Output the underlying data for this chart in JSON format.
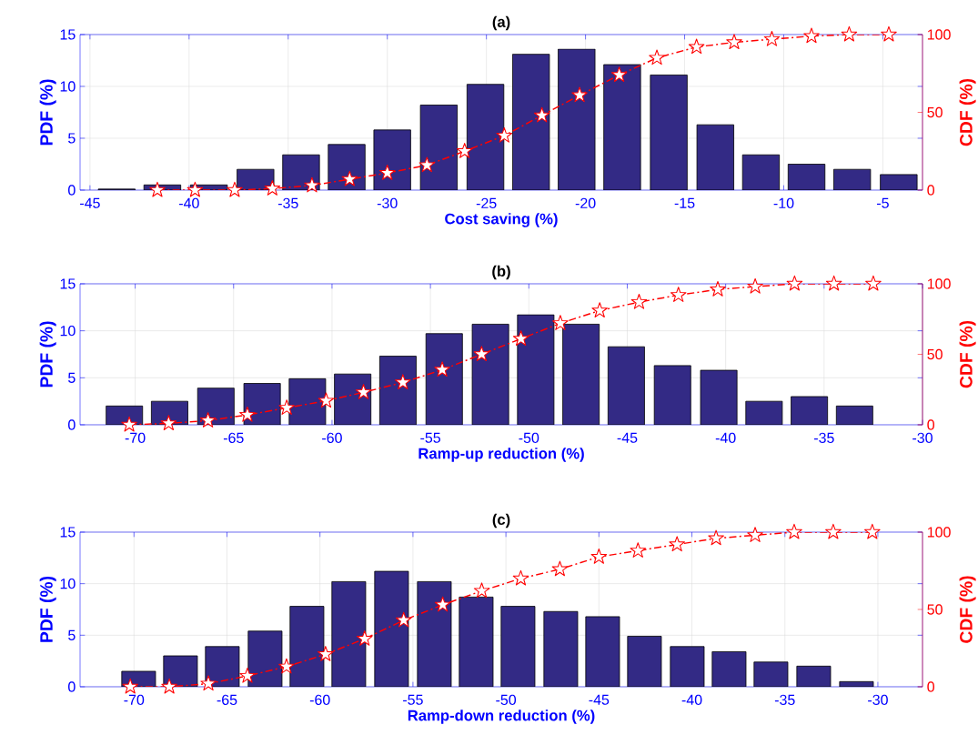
{
  "chart_data": [
    {
      "type": "histogram",
      "title": "(a)",
      "xlabel": "Cost saving (%)",
      "ylabel": "PDF (%)",
      "y2label": "CDF (%)",
      "xlim": [
        -45.5,
        -3
      ],
      "xticks": [
        -45,
        -40,
        -35,
        -30,
        -25,
        -20,
        -15,
        -10,
        -5
      ],
      "ylim": [
        0,
        15
      ],
      "yticks": [
        0,
        5,
        10,
        15
      ],
      "y2lim": [
        0,
        100
      ],
      "y2ticks": [
        0,
        50,
        100
      ],
      "grid": true,
      "series": [
        {
          "color": "#332a85",
          "bins": [
            -44.8,
            -42.5,
            -40.2,
            -37.8,
            -35.5,
            -33.2,
            -30.9,
            -28.6,
            -26.2,
            -23.9,
            -21.6,
            -19.3,
            -17.0,
            -14.6,
            -12.3,
            -10.0,
            -7.7,
            -5.4,
            -3.0
          ],
          "values": [
            0.1,
            0.5,
            0.5,
            2.0,
            3.4,
            4.4,
            5.8,
            8.2,
            10.2,
            13.1,
            13.6,
            12.1,
            11.1,
            6.3,
            3.4,
            2.5,
            2.0,
            1.5
          ]
        },
        {
          "type": "line",
          "axis": "y2",
          "color": "#ff0000",
          "marker": "star",
          "line_style": "dashdot",
          "x": [
            -41.6,
            -39.7,
            -37.7,
            -35.8,
            -33.8,
            -31.9,
            -30.0,
            -28.0,
            -26.1,
            -24.1,
            -22.2,
            -20.3,
            -18.3,
            -16.4,
            -14.4,
            -12.5,
            -10.6,
            -8.6,
            -6.7,
            -4.7
          ],
          "values": [
            0,
            0,
            0,
            1,
            3,
            7,
            11,
            16,
            25,
            35,
            48,
            61,
            74,
            85,
            92,
            95,
            97,
            99,
            100,
            100
          ]
        }
      ]
    },
    {
      "type": "histogram",
      "title": "(b)",
      "xlabel": "Ramp-up reduction (%)",
      "ylabel": "PDF (%)",
      "y2label": "CDF (%)",
      "xlim": [
        -72.8,
        -30
      ],
      "xticks": [
        -70,
        -65,
        -60,
        -55,
        -50,
        -45,
        -40,
        -35,
        -30
      ],
      "ylim": [
        0,
        15
      ],
      "yticks": [
        0,
        5,
        10,
        15
      ],
      "y2lim": [
        0,
        100
      ],
      "y2ticks": [
        0,
        50,
        100
      ],
      "grid": true,
      "series": [
        {
          "color": "#332a85",
          "bins": [
            -71.7,
            -69.4,
            -67.1,
            -64.7,
            -62.4,
            -60.1,
            -57.8,
            -55.5,
            -53.1,
            -50.8,
            -48.5,
            -46.2,
            -43.9,
            -41.5,
            -39.2,
            -36.9,
            -34.6,
            -32.3
          ],
          "values": [
            2.0,
            2.5,
            3.9,
            4.4,
            4.9,
            5.4,
            7.3,
            9.7,
            10.7,
            11.7,
            10.7,
            8.3,
            6.3,
            5.8,
            2.5,
            3.0,
            2.0
          ]
        },
        {
          "type": "line",
          "axis": "y2",
          "color": "#ff0000",
          "marker": "star",
          "line_style": "dashdot",
          "x": [
            -70.3,
            -68.3,
            -66.3,
            -64.3,
            -62.3,
            -60.3,
            -58.4,
            -56.4,
            -54.4,
            -52.4,
            -50.4,
            -48.4,
            -46.4,
            -44.4,
            -42.4,
            -40.4,
            -38.5,
            -36.5,
            -34.5,
            -32.5
          ],
          "values": [
            0,
            1,
            3,
            7,
            12,
            17,
            23,
            30,
            39,
            50,
            61,
            72,
            81,
            87,
            92,
            96,
            98,
            100,
            100,
            100
          ]
        }
      ]
    },
    {
      "type": "histogram",
      "title": "(c)",
      "xlabel": "Ramp-down reduction (%)",
      "ylabel": "PDF (%)",
      "y2label": "CDF (%)",
      "xlim": [
        -72.9,
        -27.6
      ],
      "xticks": [
        -70,
        -65,
        -60,
        -55,
        -50,
        -45,
        -40,
        -35,
        -30
      ],
      "ylim": [
        0,
        15
      ],
      "yticks": [
        0,
        5,
        10,
        15
      ],
      "y2lim": [
        0,
        100
      ],
      "y2ticks": [
        0,
        50,
        100
      ],
      "grid": true,
      "series": [
        {
          "color": "#332a85",
          "bins": [
            -70.9,
            -68.6,
            -66.4,
            -64.1,
            -61.8,
            -59.6,
            -57.3,
            -55.0,
            -52.7,
            -50.5,
            -48.2,
            -45.9,
            -43.7,
            -41.4,
            -39.1,
            -36.9,
            -34.6,
            -32.3,
            -30.0
          ],
          "values": [
            1.5,
            3.0,
            3.9,
            5.4,
            7.8,
            10.2,
            11.2,
            10.2,
            8.7,
            7.8,
            7.3,
            6.8,
            4.9,
            3.9,
            3.4,
            2.4,
            2.0,
            0.5
          ]
        },
        {
          "type": "line",
          "axis": "y2",
          "color": "#ff0000",
          "marker": "star",
          "line_style": "dashdot",
          "x": [
            -70.2,
            -68.1,
            -66.0,
            -63.9,
            -61.8,
            -59.7,
            -57.6,
            -55.5,
            -53.4,
            -51.3,
            -49.2,
            -47.1,
            -45.0,
            -42.9,
            -40.8,
            -38.7,
            -36.6,
            -34.5,
            -32.4,
            -30.3
          ],
          "values": [
            0,
            0,
            2,
            7,
            13,
            21,
            31,
            43,
            53,
            62,
            70,
            76,
            84,
            88,
            92,
            96,
            98,
            100,
            100,
            100
          ]
        }
      ]
    }
  ]
}
